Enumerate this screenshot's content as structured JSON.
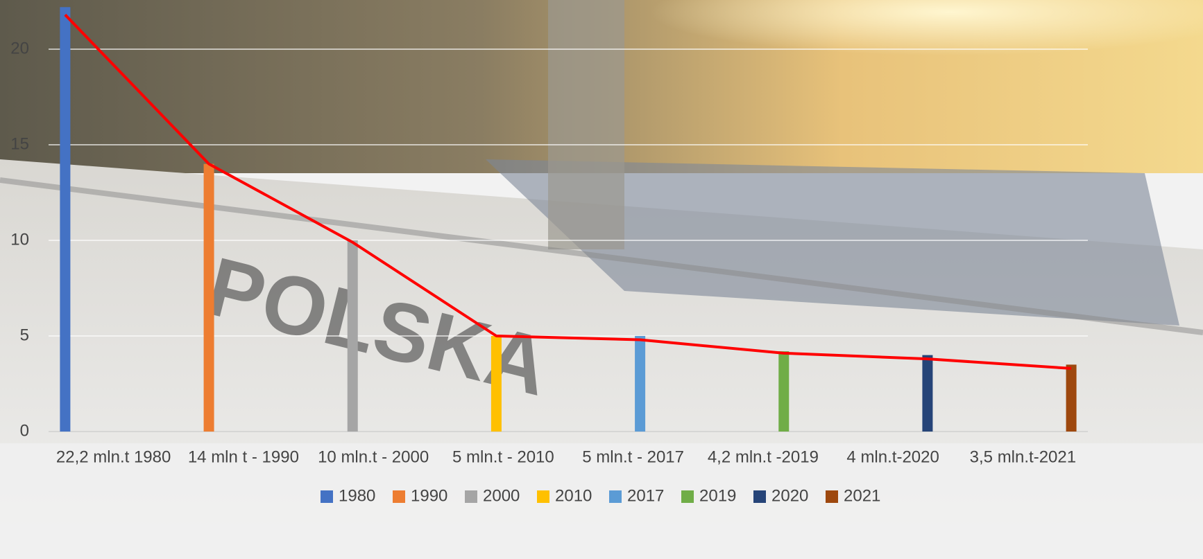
{
  "chart_data": {
    "type": "bar",
    "categories": [
      "22,2 mln.t 1980",
      "14 mln t - 1990",
      "10 mln.t - 2000",
      "5 mln.t - 2010",
      "5 mln.t - 2017",
      "4,2 mln.t -2019",
      "4 mln.t-2020",
      "3,5 mln.t-2021"
    ],
    "series": [
      {
        "name": "1980",
        "color": "#4472c4",
        "values": [
          22.2,
          null,
          null,
          null,
          null,
          null,
          null,
          null
        ]
      },
      {
        "name": "1990",
        "color": "#ed7d31",
        "values": [
          null,
          14,
          null,
          null,
          null,
          null,
          null,
          null
        ]
      },
      {
        "name": "2000",
        "color": "#a5a5a5",
        "values": [
          null,
          null,
          10,
          null,
          null,
          null,
          null,
          null
        ]
      },
      {
        "name": "2010",
        "color": "#ffc000",
        "values": [
          null,
          null,
          null,
          5,
          null,
          null,
          null,
          null
        ]
      },
      {
        "name": "2017",
        "color": "#5b9bd5",
        "values": [
          null,
          null,
          null,
          null,
          5,
          null,
          null,
          null
        ]
      },
      {
        "name": "2019",
        "color": "#70ad47",
        "values": [
          null,
          null,
          null,
          null,
          null,
          4.2,
          null,
          null
        ]
      },
      {
        "name": "2020",
        "color": "#264478",
        "values": [
          null,
          null,
          null,
          null,
          null,
          null,
          4,
          null
        ]
      },
      {
        "name": "2021",
        "color": "#9e480e",
        "values": [
          null,
          null,
          null,
          null,
          null,
          null,
          null,
          3.5
        ]
      }
    ],
    "line": {
      "color": "#ff0000",
      "values": [
        21.8,
        14,
        9.9,
        5,
        4.8,
        4.1,
        3.8,
        3.3
      ]
    },
    "ylim": [
      0,
      22.5
    ],
    "yticks": [
      0,
      5,
      10,
      15,
      20
    ],
    "grid": true,
    "legend": "bottom"
  }
}
